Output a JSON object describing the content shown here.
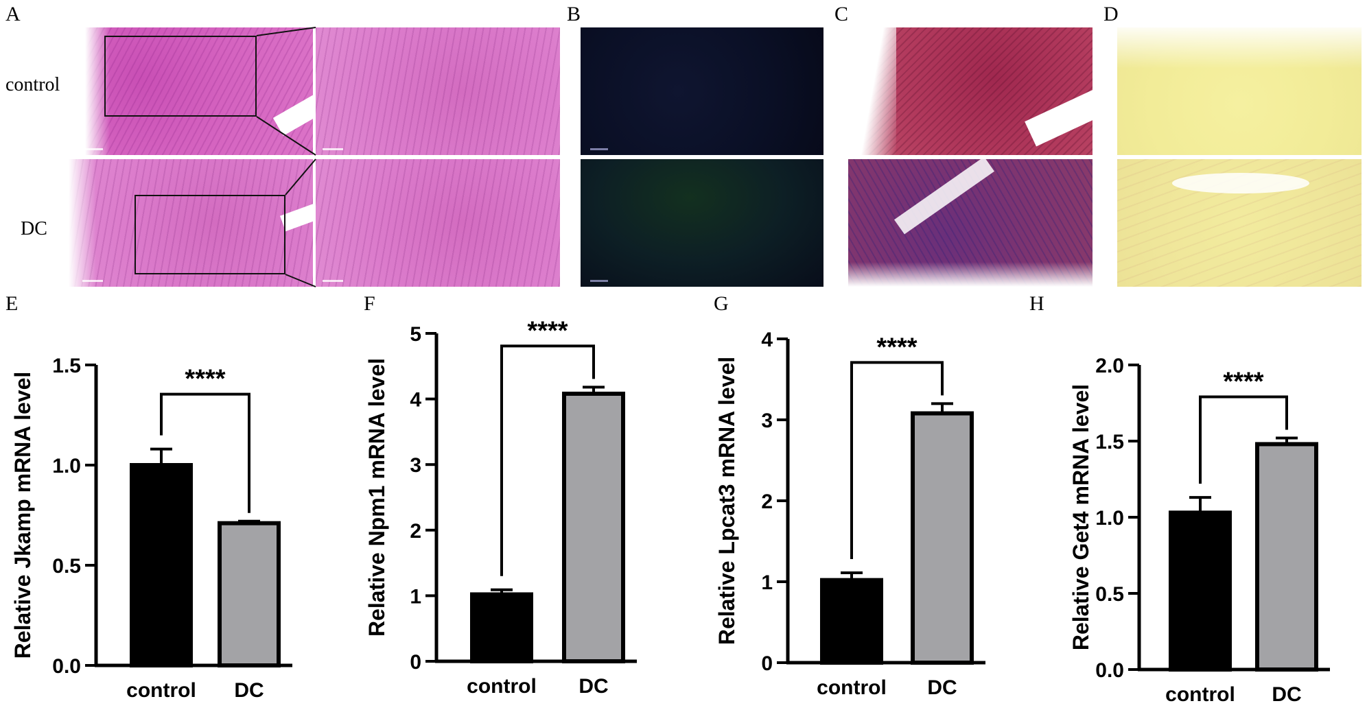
{
  "figure": {
    "panel_letters": [
      "A",
      "B",
      "C",
      "D",
      "E",
      "F",
      "G",
      "H"
    ],
    "row_labels": {
      "top": "control",
      "bottom": "DC"
    }
  },
  "chart_data": [
    {
      "type": "bar",
      "panel": "E",
      "categories": [
        "control",
        "DC"
      ],
      "values": [
        1.0,
        0.71
      ],
      "errors": [
        0.08,
        0.01
      ],
      "colors": [
        "#000000",
        "#a3a3a6"
      ],
      "ylabel": "Relative Jkamp mRNA level",
      "ylim": [
        0,
        1.5
      ],
      "yticks": [
        "0.0",
        "0.5",
        "1.0",
        "1.5"
      ],
      "ytick_values": [
        0,
        0.5,
        1.0,
        1.5
      ],
      "significance": "****"
    },
    {
      "type": "bar",
      "panel": "F",
      "categories": [
        "control",
        "DC"
      ],
      "values": [
        1.02,
        4.08
      ],
      "errors": [
        0.07,
        0.1
      ],
      "colors": [
        "#000000",
        "#a3a3a6"
      ],
      "ylabel": "Relative Npm1 mRNA level",
      "ylim": [
        0,
        5
      ],
      "yticks": [
        "0",
        "1",
        "2",
        "3",
        "4",
        "5"
      ],
      "ytick_values": [
        0,
        1,
        2,
        3,
        4,
        5
      ],
      "significance": "****"
    },
    {
      "type": "bar",
      "panel": "G",
      "categories": [
        "control",
        "DC"
      ],
      "values": [
        1.02,
        3.08
      ],
      "errors": [
        0.09,
        0.12
      ],
      "colors": [
        "#000000",
        "#a3a3a6"
      ],
      "ylabel": "Relative Lpcat3 mRNA level",
      "ylim": [
        0,
        4
      ],
      "yticks": [
        "0",
        "1",
        "2",
        "3",
        "4"
      ],
      "ytick_values": [
        0,
        1,
        2,
        3,
        4
      ],
      "significance": "****"
    },
    {
      "type": "bar",
      "panel": "H",
      "categories": [
        "control",
        "DC"
      ],
      "values": [
        1.03,
        1.48
      ],
      "errors": [
        0.1,
        0.04
      ],
      "colors": [
        "#000000",
        "#a3a3a6"
      ],
      "ylabel": "Relative Get4 mRNA level",
      "ylim": [
        0,
        2.0
      ],
      "yticks": [
        "0.0",
        "0.5",
        "1.0",
        "1.5",
        "2.0"
      ],
      "ytick_values": [
        0,
        0.5,
        1.0,
        1.5,
        2.0
      ],
      "significance": "****"
    }
  ]
}
